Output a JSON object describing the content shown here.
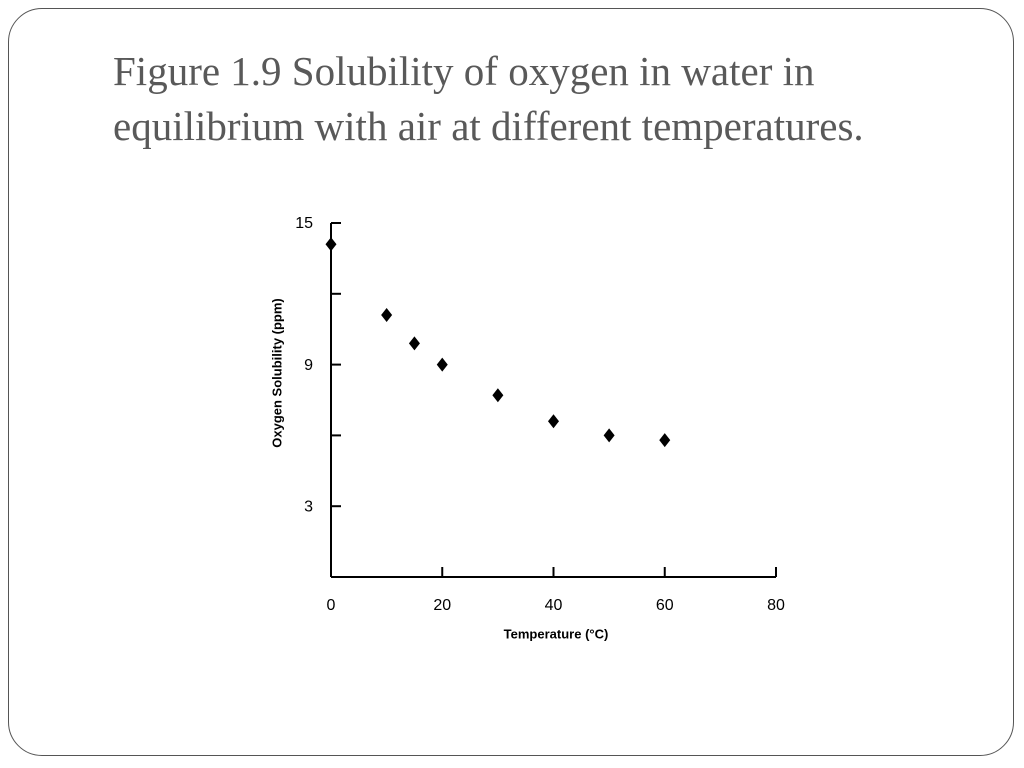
{
  "chart_data": {
    "type": "scatter",
    "title": "Figure 1.9  Solubility of oxygen in water in equilibrium with air at different temperatures.",
    "x_label": "Temperature (°C)",
    "y_label": "Oxygen Solubility (ppm)",
    "x": [
      0,
      10,
      15,
      20,
      30,
      40,
      50,
      60
    ],
    "values": [
      14.1,
      11.1,
      9.9,
      9.0,
      7.7,
      6.6,
      6.0,
      5.8
    ],
    "color": "#000000",
    "xlim": [
      0,
      80
    ],
    "xticks": [
      0,
      20,
      40,
      60,
      80
    ],
    "ylim": [
      0,
      15
    ],
    "yticks": [
      3,
      9,
      15
    ],
    "minor_yticks": [
      6,
      12
    ],
    "grid": false
  }
}
